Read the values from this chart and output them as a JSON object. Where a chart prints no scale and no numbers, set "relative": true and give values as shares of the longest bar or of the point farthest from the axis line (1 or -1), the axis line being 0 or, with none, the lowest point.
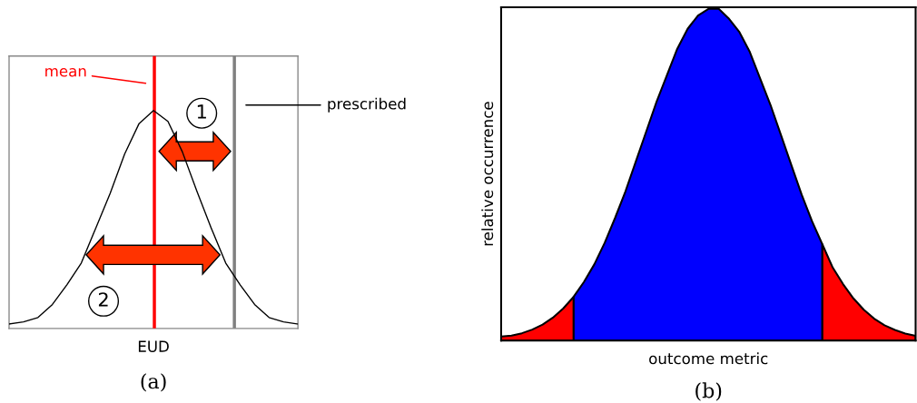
{
  "chart_data": [
    {
      "type": "line",
      "relative": true,
      "xlabel": "EUD",
      "color": "#000000",
      "categories": [
        null,
        null,
        null,
        null,
        null,
        null,
        null,
        null,
        null,
        null,
        null,
        null,
        null,
        null,
        null,
        null,
        null,
        null,
        null,
        null,
        null
      ],
      "values": [
        0.02,
        0.03,
        0.05,
        0.11,
        0.2,
        0.3,
        0.46,
        0.62,
        0.8,
        0.94,
        1.0,
        0.95,
        0.81,
        0.63,
        0.46,
        0.3,
        0.2,
        0.11,
        0.05,
        0.03,
        0.02
      ],
      "annotations": [
        "mean",
        "prescribed",
        "1",
        "2",
        "(a)"
      ]
    },
    {
      "type": "area",
      "relative": true,
      "xlabel": "outcome metric",
      "ylabel": "relative occurrence",
      "categories": [
        null,
        null,
        null,
        null,
        null,
        null,
        null,
        null,
        null,
        null,
        null,
        null,
        null,
        null,
        null,
        null,
        null,
        null,
        null,
        null,
        null,
        null,
        null,
        null,
        null,
        null,
        null,
        null,
        null,
        null,
        null,
        null,
        null,
        null,
        null,
        null,
        null,
        null,
        null,
        null,
        null
      ],
      "series": [
        {
          "color": "#ff0000",
          "values": [
            0.012,
            0.015,
            0.022,
            0.033,
            0.048,
            0.069,
            0.097,
            0.132,
            null,
            null,
            null,
            null,
            null,
            null,
            null,
            null,
            null,
            null,
            null,
            null,
            null,
            null,
            null,
            null,
            null,
            null,
            null,
            null,
            null,
            null,
            null,
            null,
            null,
            null,
            null,
            null,
            null,
            null,
            null,
            null,
            null
          ]
        },
        {
          "color": "#0000ff",
          "values": [
            null,
            null,
            null,
            null,
            null,
            null,
            null,
            0.132,
            0.177,
            0.23,
            0.295,
            0.37,
            0.45,
            0.54,
            0.63,
            0.72,
            0.8,
            0.88,
            0.94,
            0.98,
            1.0,
            1.0,
            0.97,
            0.93,
            0.87,
            0.79,
            0.71,
            0.62,
            0.53,
            0.44,
            0.36,
            0.29,
            null,
            null,
            null,
            null,
            null,
            null,
            null,
            null,
            null
          ]
        },
        {
          "color": "#ff0000",
          "values": [
            null,
            null,
            null,
            null,
            null,
            null,
            null,
            null,
            null,
            null,
            null,
            null,
            null,
            null,
            null,
            null,
            null,
            null,
            null,
            null,
            null,
            null,
            null,
            null,
            null,
            null,
            null,
            null,
            null,
            null,
            null,
            0.29,
            0.22,
            0.17,
            0.127,
            0.093,
            0.066,
            0.046,
            0.032,
            0.021,
            0.014
          ]
        }
      ],
      "annotations": [
        "(b)"
      ]
    }
  ]
}
